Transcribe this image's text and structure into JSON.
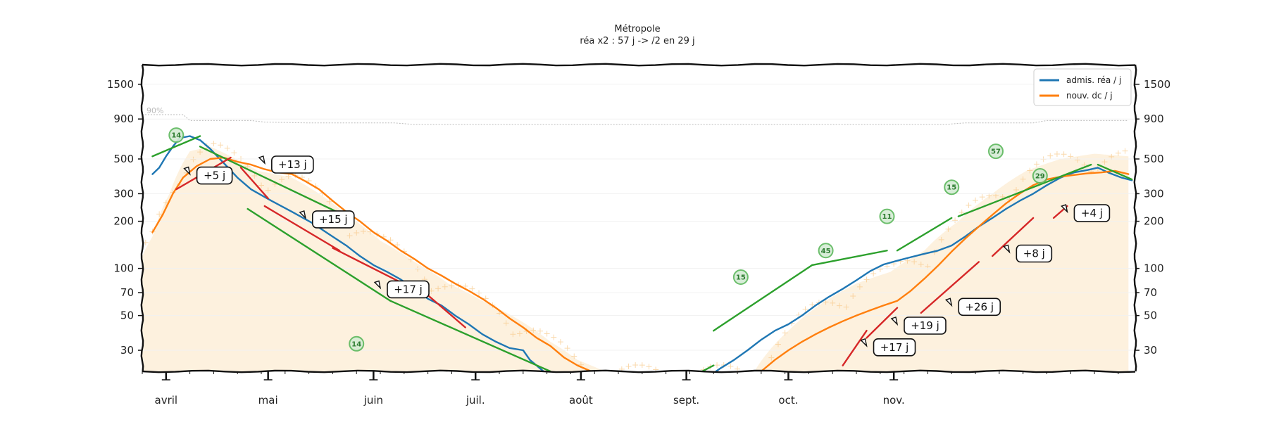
{
  "chart_data": {
    "type": "line",
    "title": "Métropole",
    "subtitle": "réa x2 : 57 j -> /2 en 29 j",
    "yscale": "log",
    "ylim": [
      22,
      2000
    ],
    "yticks": [
      30,
      50,
      70,
      100,
      200,
      300,
      500,
      900,
      1500
    ],
    "months": [
      "avril",
      "mai",
      "juin",
      "juil.",
      "août",
      "sept.",
      "oct.",
      "nov."
    ],
    "capacity_label": "90%",
    "legend": {
      "placement": "top-right",
      "entries": [
        {
          "label": "admis. réa / j",
          "color": "#1f77b4"
        },
        {
          "label": "nouv. dc / j",
          "color": "#ff7f0e"
        }
      ]
    },
    "colors": {
      "rea": "#1f77b4",
      "dc": "#ff7f0e",
      "trend": "#2ca02c",
      "lag": "#d62728",
      "fill": "#fdf1de",
      "daily": "#f8c98a"
    },
    "series": [
      {
        "name": "admis. réa / j",
        "color": "#1f77b4",
        "points": [
          [
            3,
            400
          ],
          [
            5,
            440
          ],
          [
            7,
            520
          ],
          [
            9,
            600
          ],
          [
            11,
            680
          ],
          [
            14,
            700
          ],
          [
            17,
            660
          ],
          [
            20,
            580
          ],
          [
            24,
            470
          ],
          [
            28,
            380
          ],
          [
            32,
            320
          ],
          [
            38,
            270
          ],
          [
            44,
            230
          ],
          [
            50,
            195
          ],
          [
            55,
            165
          ],
          [
            60,
            140
          ],
          [
            64,
            120
          ],
          [
            68,
            105
          ],
          [
            72,
            95
          ],
          [
            76,
            85
          ],
          [
            80,
            74
          ],
          [
            84,
            64
          ],
          [
            88,
            58
          ],
          [
            92,
            50
          ],
          [
            96,
            44
          ],
          [
            100,
            38
          ],
          [
            104,
            34
          ],
          [
            108,
            31
          ],
          [
            112,
            30
          ],
          [
            114,
            26
          ],
          [
            118,
            22
          ],
          [
            156,
            20
          ],
          [
            166,
            20
          ],
          [
            170,
            23
          ],
          [
            174,
            26
          ],
          [
            178,
            30
          ],
          [
            182,
            35
          ],
          [
            186,
            40
          ],
          [
            190,
            44
          ],
          [
            194,
            50
          ],
          [
            198,
            58
          ],
          [
            202,
            66
          ],
          [
            206,
            74
          ],
          [
            210,
            84
          ],
          [
            214,
            96
          ],
          [
            218,
            106
          ],
          [
            222,
            112
          ],
          [
            226,
            118
          ],
          [
            230,
            124
          ],
          [
            234,
            130
          ],
          [
            238,
            140
          ],
          [
            242,
            160
          ],
          [
            246,
            185
          ],
          [
            250,
            210
          ],
          [
            254,
            240
          ],
          [
            258,
            270
          ],
          [
            262,
            300
          ],
          [
            266,
            340
          ],
          [
            270,
            380
          ],
          [
            274,
            410
          ],
          [
            278,
            425
          ],
          [
            281,
            440
          ],
          [
            284,
            410
          ],
          [
            288,
            380
          ],
          [
            291,
            365
          ]
        ]
      },
      {
        "name": "nouv. dc / j",
        "color": "#ff7f0e",
        "points": [
          [
            3,
            170
          ],
          [
            6,
            220
          ],
          [
            9,
            300
          ],
          [
            12,
            380
          ],
          [
            16,
            450
          ],
          [
            20,
            500
          ],
          [
            24,
            510
          ],
          [
            28,
            480
          ],
          [
            32,
            460
          ],
          [
            36,
            430
          ],
          [
            40,
            410
          ],
          [
            44,
            400
          ],
          [
            48,
            360
          ],
          [
            52,
            320
          ],
          [
            56,
            270
          ],
          [
            60,
            230
          ],
          [
            64,
            200
          ],
          [
            68,
            170
          ],
          [
            72,
            150
          ],
          [
            76,
            130
          ],
          [
            80,
            115
          ],
          [
            84,
            100
          ],
          [
            88,
            90
          ],
          [
            92,
            80
          ],
          [
            96,
            72
          ],
          [
            100,
            64
          ],
          [
            104,
            56
          ],
          [
            108,
            48
          ],
          [
            112,
            42
          ],
          [
            116,
            36
          ],
          [
            120,
            32
          ],
          [
            124,
            27
          ],
          [
            128,
            24
          ],
          [
            132,
            22
          ],
          [
            182,
            22
          ],
          [
            186,
            26
          ],
          [
            190,
            30
          ],
          [
            194,
            34
          ],
          [
            198,
            38
          ],
          [
            202,
            42
          ],
          [
            206,
            46
          ],
          [
            210,
            50
          ],
          [
            214,
            54
          ],
          [
            218,
            58
          ],
          [
            222,
            62
          ],
          [
            226,
            72
          ],
          [
            230,
            86
          ],
          [
            234,
            104
          ],
          [
            238,
            128
          ],
          [
            242,
            155
          ],
          [
            246,
            185
          ],
          [
            250,
            220
          ],
          [
            254,
            260
          ],
          [
            258,
            300
          ],
          [
            262,
            340
          ],
          [
            266,
            370
          ],
          [
            270,
            385
          ],
          [
            274,
            395
          ],
          [
            278,
            405
          ],
          [
            282,
            410
          ],
          [
            286,
            420
          ],
          [
            290,
            400
          ]
        ]
      }
    ],
    "trend_lines": [
      {
        "x": [
          3,
          17
        ],
        "y": [
          520,
          700
        ]
      },
      {
        "x": [
          17,
          60
        ],
        "y": [
          600,
          215
        ]
      },
      {
        "x": [
          31,
          73
        ],
        "y": [
          240,
          62
        ]
      },
      {
        "x": [
          73,
          120
        ],
        "y": [
          62,
          22
        ]
      },
      {
        "x": [
          161,
          168
        ],
        "y": [
          20,
          24
        ]
      },
      {
        "x": [
          168,
          197
        ],
        "y": [
          40,
          105
        ]
      },
      {
        "x": [
          197,
          219
        ],
        "y": [
          105,
          130
        ]
      },
      {
        "x": [
          222,
          238
        ],
        "y": [
          130,
          210
        ]
      },
      {
        "x": [
          240,
          279
        ],
        "y": [
          215,
          460
        ]
      },
      {
        "x": [
          281,
          291
        ],
        "y": [
          460,
          370
        ]
      }
    ],
    "lag_lines": [
      {
        "x": [
          10,
          26
        ],
        "y": [
          320,
          510
        ]
      },
      {
        "x": [
          29,
          37
        ],
        "y": [
          440,
          280
        ]
      },
      {
        "x": [
          36,
          58
        ],
        "y": [
          250,
          130
        ]
      },
      {
        "x": [
          56,
          82
        ],
        "y": [
          135,
          70
        ]
      },
      {
        "x": [
          80,
          95
        ],
        "y": [
          80,
          42
        ]
      },
      {
        "x": [
          206,
          213
        ],
        "y": [
          24,
          40
        ]
      },
      {
        "x": [
          213,
          222
        ],
        "y": [
          36,
          56
        ]
      },
      {
        "x": [
          229,
          246
        ],
        "y": [
          52,
          110
        ]
      },
      {
        "x": [
          250,
          262
        ],
        "y": [
          120,
          210
        ]
      },
      {
        "x": [
          268,
          272
        ],
        "y": [
          210,
          250
        ]
      }
    ],
    "lag_annotations": [
      {
        "text": "+5 j",
        "x": 14,
        "y": 400
      },
      {
        "text": "+13 j",
        "x": 36,
        "y": 470
      },
      {
        "text": "+15 j",
        "x": 48,
        "y": 210
      },
      {
        "text": "+17 j",
        "x": 70,
        "y": 75
      },
      {
        "text": "+17 j",
        "x": 213,
        "y": 32
      },
      {
        "text": "+19 j",
        "x": 222,
        "y": 44
      },
      {
        "text": "+26 j",
        "x": 238,
        "y": 58
      },
      {
        "text": "+8 j",
        "x": 255,
        "y": 127
      },
      {
        "text": "+4 j",
        "x": 272,
        "y": 230
      }
    ],
    "duration_badges": [
      {
        "text": "14",
        "x": 10,
        "y": 710
      },
      {
        "text": "14",
        "x": 63,
        "y": 33
      },
      {
        "text": "15",
        "x": 176,
        "y": 88
      },
      {
        "text": "45",
        "x": 201,
        "y": 130
      },
      {
        "text": "11",
        "x": 219,
        "y": 215
      },
      {
        "text": "15",
        "x": 238,
        "y": 330
      },
      {
        "text": "57",
        "x": 251,
        "y": 560
      },
      {
        "text": "29",
        "x": 264,
        "y": 390
      }
    ],
    "capacity_line": [
      [
        0,
        960
      ],
      [
        12,
        960
      ],
      [
        14,
        880
      ],
      [
        32,
        880
      ],
      [
        36,
        860
      ],
      [
        48,
        850
      ],
      [
        74,
        850
      ],
      [
        80,
        830
      ],
      [
        236,
        830
      ],
      [
        242,
        850
      ],
      [
        262,
        850
      ],
      [
        266,
        880
      ],
      [
        290,
        880
      ]
    ]
  }
}
